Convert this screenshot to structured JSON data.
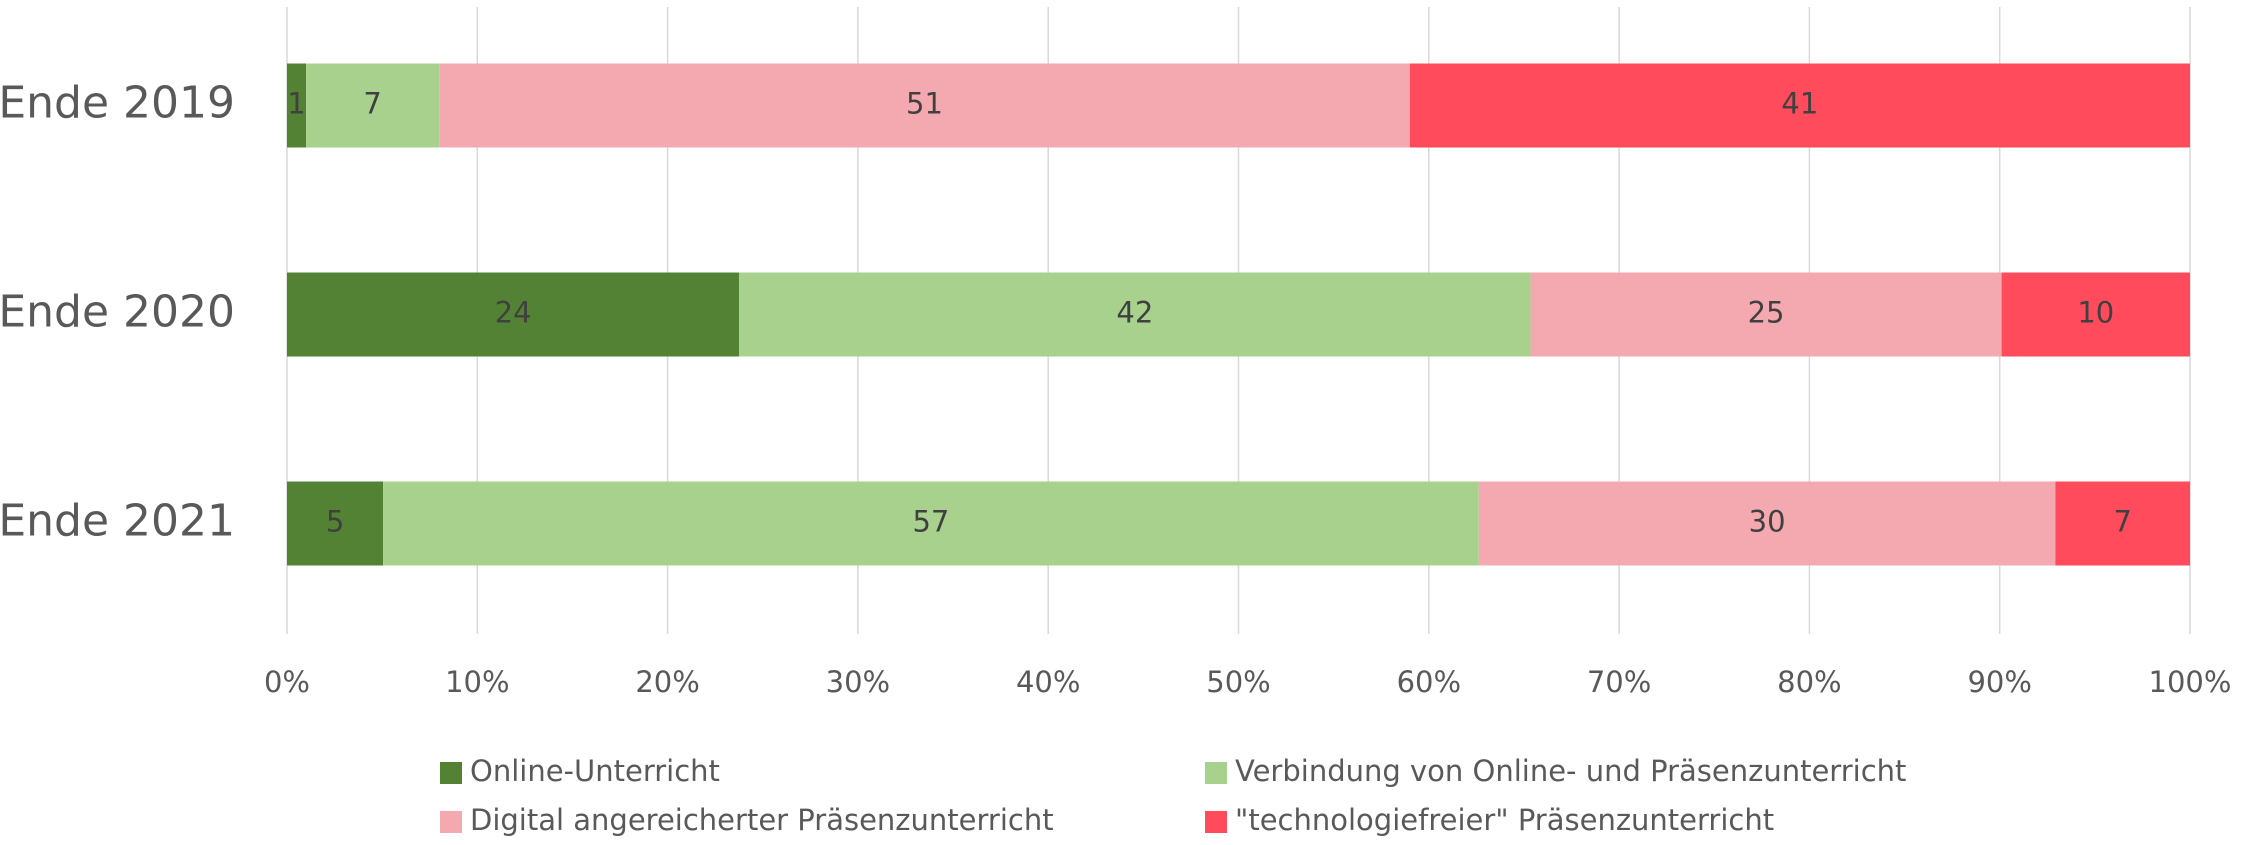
{
  "chart_data": {
    "type": "bar",
    "orientation": "horizontal",
    "stacked": "percent",
    "categories": [
      "Ende 2019",
      "Ende 2020",
      "Ende 2021"
    ],
    "series": [
      {
        "name": "Online-Unterricht",
        "color": "#548235",
        "values": [
          1,
          24,
          5
        ]
      },
      {
        "name": "Verbindung von Online- und Präsenzunterricht",
        "color": "#a9d18e",
        "values": [
          7,
          42,
          57
        ]
      },
      {
        "name": "Digital angereicherter Präsenzunterricht",
        "color": "#f4a9b1",
        "values": [
          51,
          25,
          30
        ]
      },
      {
        "name": "\"technologiefreier\" Präsenzunterricht",
        "color": "#ff4b5c",
        "values": [
          41,
          10,
          7
        ]
      }
    ],
    "xlim": [
      0,
      100
    ],
    "xticks": [
      {
        "value": 0,
        "label": "0%"
      },
      {
        "value": 10,
        "label": "10%"
      },
      {
        "value": 20,
        "label": "20%"
      },
      {
        "value": 30,
        "label": "30%"
      },
      {
        "value": 40,
        "label": "40%"
      },
      {
        "value": 50,
        "label": "50%"
      },
      {
        "value": 60,
        "label": "60%"
      },
      {
        "value": 70,
        "label": "70%"
      },
      {
        "value": 80,
        "label": "80%"
      },
      {
        "value": 90,
        "label": "90%"
      },
      {
        "value": 100,
        "label": "100%"
      }
    ],
    "grid": true,
    "legend": "bottom"
  }
}
